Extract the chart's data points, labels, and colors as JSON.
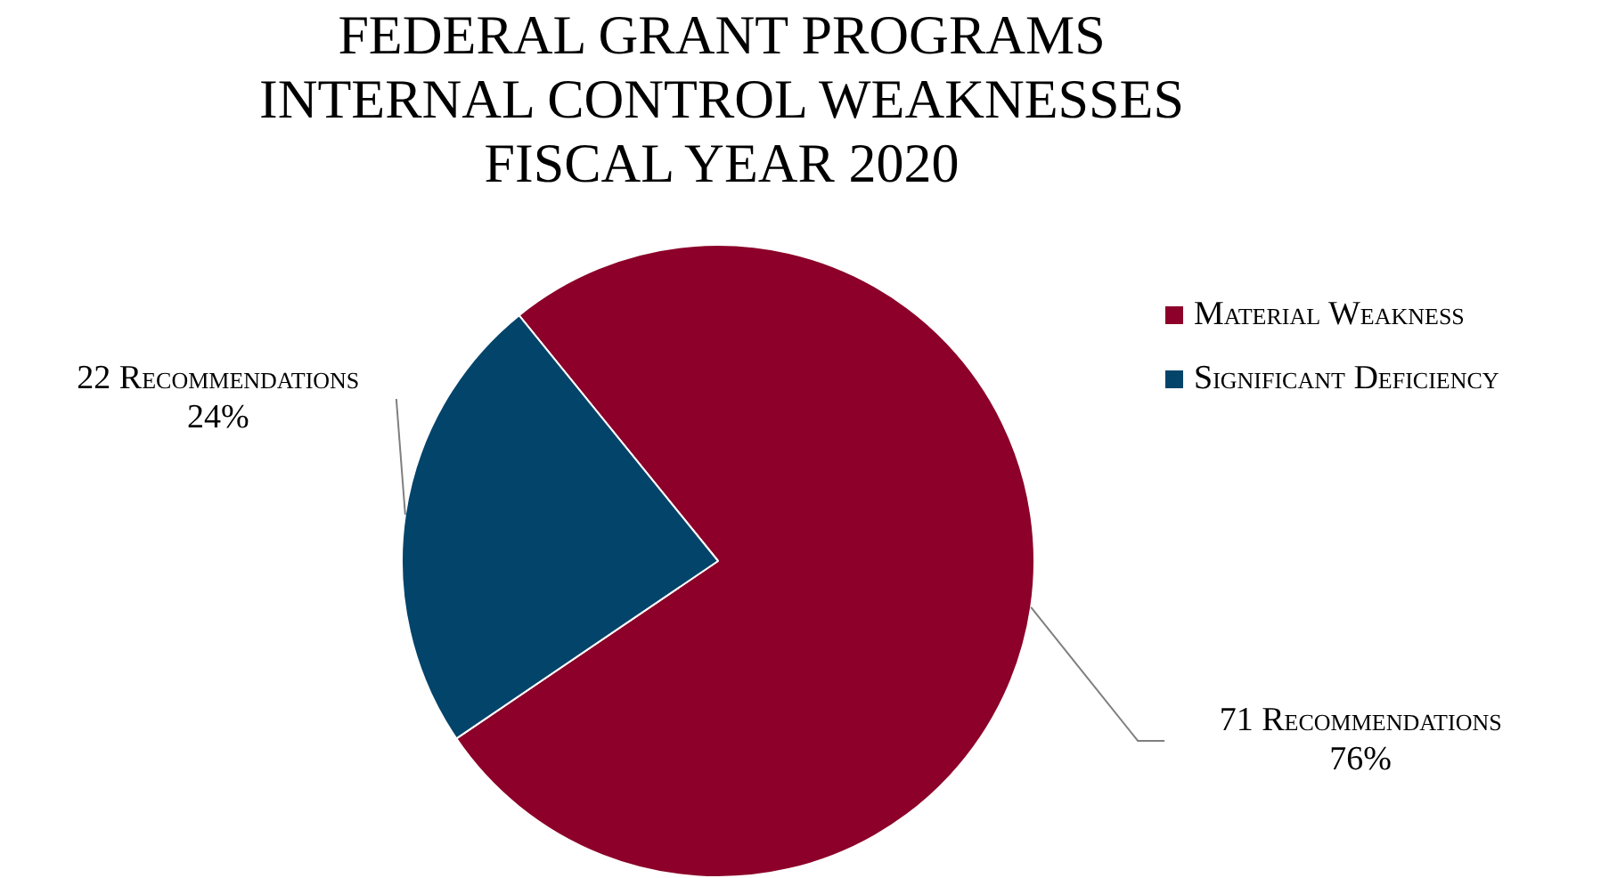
{
  "chart_data": {
    "type": "pie",
    "title": "FEDERAL GRANT PROGRAMS\nINTERNAL CONTROL WEAKNESSES\nFISCAL YEAR 2020",
    "categories": [
      "Material Weakness",
      "Significant Deficiency"
    ],
    "values": [
      71,
      22
    ],
    "colors": [
      "#8c0029",
      "#03446b"
    ],
    "value_labels": [
      "71 Recommendations\n76%",
      "22 Recommendations\n24%"
    ],
    "legend": "right"
  }
}
